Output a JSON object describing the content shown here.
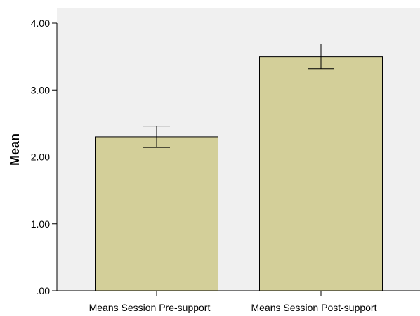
{
  "chart_data": {
    "type": "bar",
    "title": "",
    "xlabel": "",
    "ylabel": "Mean",
    "ylim": [
      0,
      4.0
    ],
    "y_ticks": [
      ".00",
      "1.00",
      "2.00",
      "3.00",
      "4.00"
    ],
    "categories": [
      "Means Session Pre-support",
      "Means Session Post-support"
    ],
    "values": [
      2.3,
      3.5
    ],
    "error_bars": [
      {
        "lower": 2.14,
        "upper": 2.46
      },
      {
        "lower": 3.32,
        "upper": 3.69
      }
    ],
    "grid": false,
    "legend": "none",
    "colors": {
      "bar_fill": "#d3cf99",
      "bar_stroke": "#000000",
      "plot_background": "#f0f0f0",
      "page_background": "#ffffff"
    }
  }
}
